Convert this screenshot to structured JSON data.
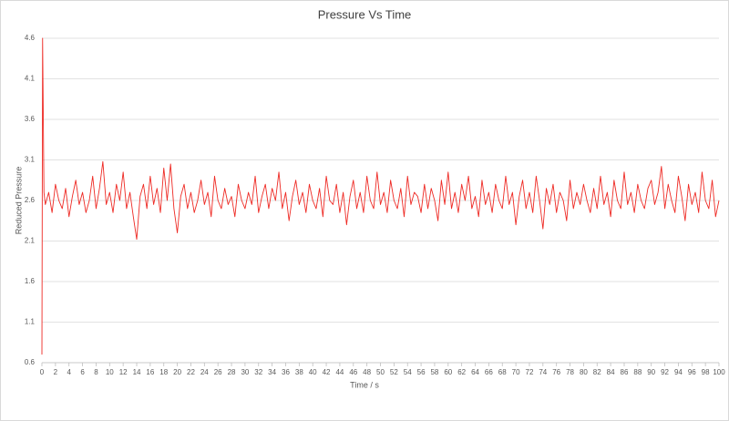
{
  "chart_data": {
    "type": "line",
    "title": "Pressure Vs Time",
    "x_label": "Time / s",
    "y_label": "Reduced Pressure",
    "color": "#ee2a24",
    "grid": true,
    "xlim": [
      0,
      100
    ],
    "xticks": [
      0,
      2,
      4,
      6,
      8,
      10,
      12,
      14,
      16,
      18,
      20,
      22,
      24,
      26,
      28,
      30,
      32,
      34,
      36,
      38,
      40,
      42,
      44,
      46,
      48,
      50,
      52,
      54,
      56,
      58,
      60,
      62,
      64,
      66,
      68,
      70,
      72,
      74,
      76,
      78,
      80,
      82,
      84,
      86,
      88,
      90,
      92,
      94,
      96,
      98,
      100
    ],
    "ylim": [
      0.6,
      4.6
    ],
    "yticks": [
      0.6,
      1.1,
      1.6,
      2.1,
      2.6,
      3.1,
      3.6,
      4.1,
      4.6
    ],
    "x": [
      0,
      0.1,
      0.3,
      0.5,
      1,
      1.5,
      2,
      2.5,
      3,
      3.5,
      4,
      4.5,
      5,
      5.5,
      6,
      6.5,
      7,
      7.5,
      8,
      8.5,
      9,
      9.5,
      10,
      10.5,
      11,
      11.5,
      12,
      12.5,
      13,
      13.5,
      14,
      14.5,
      15,
      15.5,
      16,
      16.5,
      17,
      17.5,
      18,
      18.5,
      19,
      19.5,
      20,
      20.5,
      21,
      21.5,
      22,
      22.5,
      23,
      23.5,
      24,
      24.5,
      25,
      25.5,
      26,
      26.5,
      27,
      27.5,
      28,
      28.5,
      29,
      29.5,
      30,
      30.5,
      31,
      31.5,
      32,
      32.5,
      33,
      33.5,
      34,
      34.5,
      35,
      35.5,
      36,
      36.5,
      37,
      37.5,
      38,
      38.5,
      39,
      39.5,
      40,
      40.5,
      41,
      41.5,
      42,
      42.5,
      43,
      43.5,
      44,
      44.5,
      45,
      45.5,
      46,
      46.5,
      47,
      47.5,
      48,
      48.5,
      49,
      49.5,
      50,
      50.5,
      51,
      51.5,
      52,
      52.5,
      53,
      53.5,
      54,
      54.5,
      55,
      55.5,
      56,
      56.5,
      57,
      57.5,
      58,
      58.5,
      59,
      59.5,
      60,
      60.5,
      61,
      61.5,
      62,
      62.5,
      63,
      63.5,
      64,
      64.5,
      65,
      65.5,
      66,
      66.5,
      67,
      67.5,
      68,
      68.5,
      69,
      69.5,
      70,
      70.5,
      71,
      71.5,
      72,
      72.5,
      73,
      73.5,
      74,
      74.5,
      75,
      75.5,
      76,
      76.5,
      77,
      77.5,
      78,
      78.5,
      79,
      79.5,
      80,
      80.5,
      81,
      81.5,
      82,
      82.5,
      83,
      83.5,
      84,
      84.5,
      85,
      85.5,
      86,
      86.5,
      87,
      87.5,
      88,
      88.5,
      89,
      89.5,
      90,
      90.5,
      91,
      91.5,
      92,
      92.5,
      93,
      93.5,
      94,
      94.5,
      95,
      95.5,
      96,
      96.5,
      97,
      97.5,
      98,
      98.5,
      99,
      99.5,
      100
    ],
    "values": [
      0.7,
      4.6,
      2.7,
      2.55,
      2.7,
      2.45,
      2.8,
      2.6,
      2.5,
      2.75,
      2.4,
      2.65,
      2.85,
      2.55,
      2.7,
      2.45,
      2.6,
      2.9,
      2.5,
      2.75,
      3.08,
      2.55,
      2.7,
      2.45,
      2.8,
      2.6,
      2.95,
      2.5,
      2.7,
      2.4,
      2.12,
      2.65,
      2.8,
      2.5,
      2.9,
      2.55,
      2.75,
      2.45,
      3.0,
      2.6,
      3.05,
      2.5,
      2.2,
      2.65,
      2.8,
      2.5,
      2.7,
      2.45,
      2.6,
      2.85,
      2.55,
      2.7,
      2.4,
      2.9,
      2.6,
      2.5,
      2.75,
      2.55,
      2.65,
      2.4,
      2.8,
      2.6,
      2.5,
      2.7,
      2.55,
      2.9,
      2.45,
      2.65,
      2.8,
      2.5,
      2.75,
      2.6,
      2.95,
      2.5,
      2.7,
      2.35,
      2.65,
      2.85,
      2.55,
      2.7,
      2.45,
      2.8,
      2.6,
      2.5,
      2.75,
      2.4,
      2.9,
      2.6,
      2.55,
      2.8,
      2.45,
      2.7,
      2.3,
      2.65,
      2.85,
      2.5,
      2.7,
      2.45,
      2.9,
      2.6,
      2.5,
      2.95,
      2.55,
      2.7,
      2.45,
      2.85,
      2.6,
      2.5,
      2.75,
      2.4,
      2.9,
      2.55,
      2.7,
      2.65,
      2.45,
      2.8,
      2.5,
      2.75,
      2.6,
      2.35,
      2.85,
      2.55,
      2.95,
      2.5,
      2.7,
      2.45,
      2.8,
      2.6,
      2.9,
      2.5,
      2.65,
      2.4,
      2.85,
      2.55,
      2.7,
      2.45,
      2.8,
      2.6,
      2.5,
      2.9,
      2.55,
      2.7,
      2.3,
      2.65,
      2.85,
      2.5,
      2.7,
      2.45,
      2.9,
      2.6,
      2.25,
      2.75,
      2.55,
      2.8,
      2.45,
      2.7,
      2.6,
      2.35,
      2.85,
      2.5,
      2.7,
      2.55,
      2.8,
      2.6,
      2.45,
      2.75,
      2.5,
      2.9,
      2.55,
      2.7,
      2.4,
      2.85,
      2.6,
      2.5,
      2.95,
      2.55,
      2.7,
      2.45,
      2.8,
      2.6,
      2.5,
      2.75,
      2.85,
      2.55,
      2.7,
      3.02,
      2.5,
      2.8,
      2.6,
      2.45,
      2.9,
      2.65,
      2.35,
      2.8,
      2.55,
      2.7,
      2.45,
      2.95,
      2.6,
      2.5,
      2.85,
      2.4,
      2.6
    ]
  }
}
